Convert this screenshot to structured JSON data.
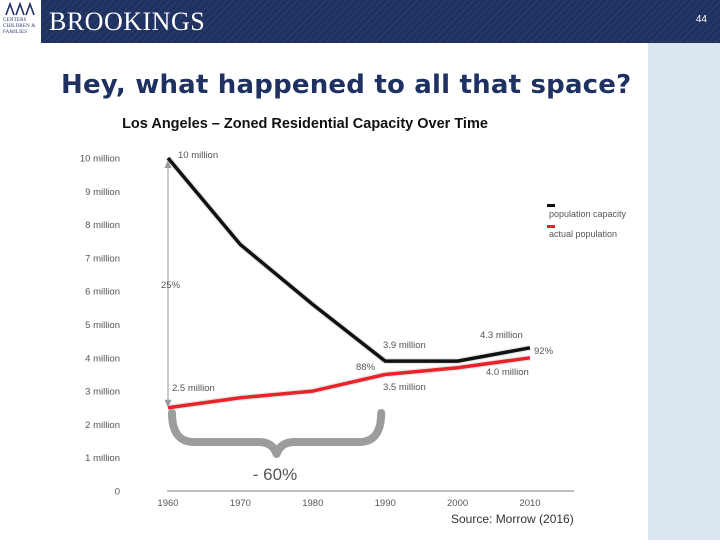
{
  "header": {
    "brand": "BROOKINGS",
    "logo_lines": [
      "CENTERS",
      "CHILDREN &",
      "FAMILIES"
    ],
    "page_number": "44"
  },
  "slide": {
    "title": "Hey, what happened to all that space?"
  },
  "chart_data": {
    "type": "line",
    "title": "Los Angeles – Zoned Residential Capacity Over Time",
    "x": [
      1960,
      1970,
      1980,
      1990,
      2000,
      2010
    ],
    "x_ticks": [
      "1960",
      "1970",
      "1980",
      "1990",
      "2000",
      "2010"
    ],
    "y_ticks": [
      "0",
      "1 million",
      "2 million",
      "3 million",
      "4 million",
      "5 million",
      "6 million",
      "7 million",
      "8 million",
      "9 million",
      "10 million"
    ],
    "ylim": [
      0,
      10
    ],
    "grid": false,
    "legend_position": "right",
    "series": [
      {
        "name": "population capacity",
        "color": "#111111",
        "values": [
          10.0,
          7.4,
          5.6,
          3.9,
          3.9,
          4.3
        ]
      },
      {
        "name": "actual population",
        "color": "#e8232a",
        "values": [
          2.5,
          2.8,
          3.0,
          3.5,
          3.7,
          4.0
        ]
      }
    ],
    "annotations": {
      "cap_1960": "10 million",
      "cap_1990": "3.9 million",
      "cap_2010": "4.3 million",
      "pop_1960": "2.5 million",
      "pop_1990": "3.5 million",
      "pop_2010": "4.0 million",
      "pct_1960": "25%",
      "pct_1990": "88%",
      "pct_2010": "92%",
      "drop": "- 60%"
    },
    "source": "Source: Morrow (2016)"
  }
}
